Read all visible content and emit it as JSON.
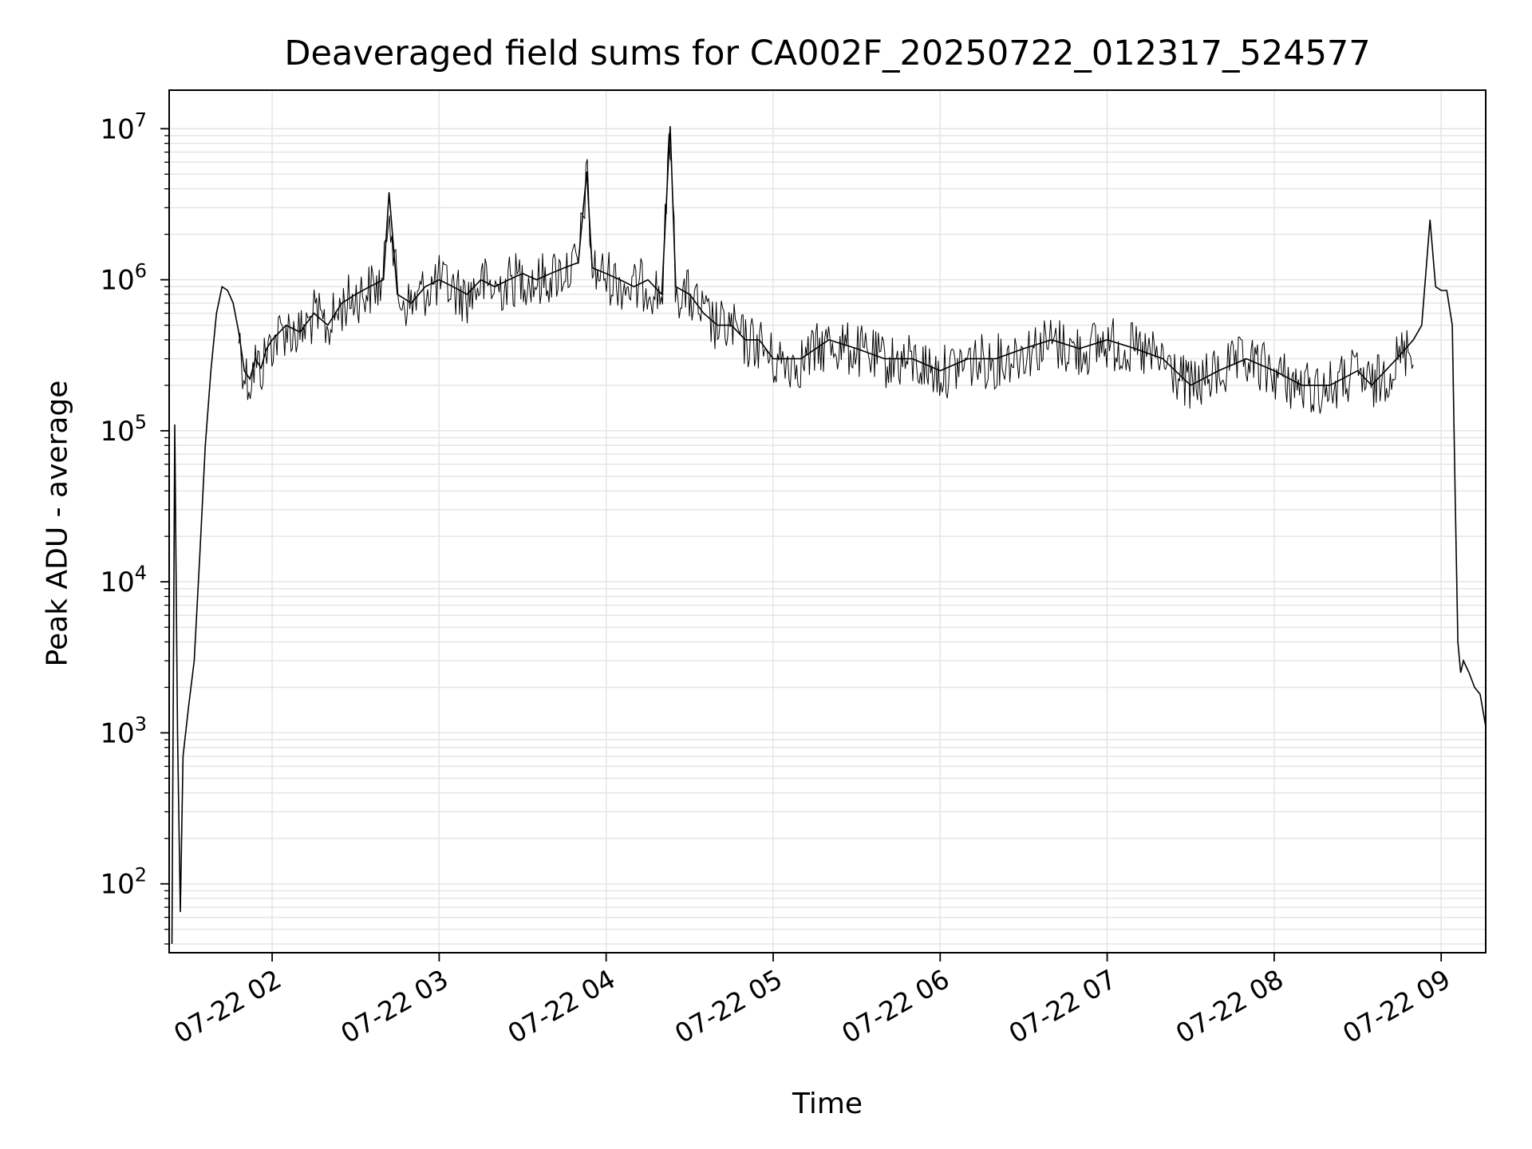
{
  "chart_data": {
    "type": "line",
    "title": "Deaveraged field sums for CA002F_20250722_012317_524577",
    "xlabel": "Time",
    "ylabel": "Peak ADU - average",
    "yscale": "log",
    "ylim": [
      35,
      18000000
    ],
    "xlim": [
      "2025-07-22 01:23",
      "2025-07-22 09:16"
    ],
    "grid": true,
    "line_color": "#000000",
    "grid_color": "#e5e5e5",
    "x_ticks": [
      {
        "x": "2025-07-22 02:00",
        "label": "07-22 02"
      },
      {
        "x": "2025-07-22 03:00",
        "label": "07-22 03"
      },
      {
        "x": "2025-07-22 04:00",
        "label": "07-22 04"
      },
      {
        "x": "2025-07-22 05:00",
        "label": "07-22 05"
      },
      {
        "x": "2025-07-22 06:00",
        "label": "07-22 06"
      },
      {
        "x": "2025-07-22 07:00",
        "label": "07-22 07"
      },
      {
        "x": "2025-07-22 08:00",
        "label": "07-22 08"
      },
      {
        "x": "2025-07-22 09:00",
        "label": "07-22 09"
      }
    ],
    "y_ticks": [
      {
        "y": 100,
        "base": "10",
        "exp": "2"
      },
      {
        "y": 1000,
        "base": "10",
        "exp": "3"
      },
      {
        "y": 10000,
        "base": "10",
        "exp": "4"
      },
      {
        "y": 100000,
        "base": "10",
        "exp": "5"
      },
      {
        "y": 1000000,
        "base": "10",
        "exp": "6"
      },
      {
        "y": 10000000,
        "base": "10",
        "exp": "7"
      }
    ],
    "series": [
      {
        "x": [
          "2025-07-22 01:24",
          "2025-07-22 01:25",
          "2025-07-22 01:26",
          "2025-07-22 01:27",
          "2025-07-22 01:28",
          "2025-07-22 01:30",
          "2025-07-22 01:32",
          "2025-07-22 01:34",
          "2025-07-22 01:36",
          "2025-07-22 01:38",
          "2025-07-22 01:40",
          "2025-07-22 01:42",
          "2025-07-22 01:44",
          "2025-07-22 01:46",
          "2025-07-22 01:48",
          "2025-07-22 01:50",
          "2025-07-22 01:52",
          "2025-07-22 01:54",
          "2025-07-22 01:56",
          "2025-07-22 01:58",
          "2025-07-22 02:00",
          "2025-07-22 02:05",
          "2025-07-22 02:10",
          "2025-07-22 02:15",
          "2025-07-22 02:20",
          "2025-07-22 02:25",
          "2025-07-22 02:30",
          "2025-07-22 02:35",
          "2025-07-22 02:40",
          "2025-07-22 02:42",
          "2025-07-22 02:45",
          "2025-07-22 02:50",
          "2025-07-22 02:55",
          "2025-07-22 03:00",
          "2025-07-22 03:05",
          "2025-07-22 03:10",
          "2025-07-22 03:15",
          "2025-07-22 03:20",
          "2025-07-22 03:25",
          "2025-07-22 03:30",
          "2025-07-22 03:35",
          "2025-07-22 03:40",
          "2025-07-22 03:45",
          "2025-07-22 03:50",
          "2025-07-22 03:53",
          "2025-07-22 03:55",
          "2025-07-22 04:00",
          "2025-07-22 04:05",
          "2025-07-22 04:10",
          "2025-07-22 04:15",
          "2025-07-22 04:20",
          "2025-07-22 04:23",
          "2025-07-22 04:25",
          "2025-07-22 04:30",
          "2025-07-22 04:35",
          "2025-07-22 04:40",
          "2025-07-22 04:45",
          "2025-07-22 04:50",
          "2025-07-22 04:55",
          "2025-07-22 05:00",
          "2025-07-22 05:10",
          "2025-07-22 05:20",
          "2025-07-22 05:30",
          "2025-07-22 05:40",
          "2025-07-22 05:50",
          "2025-07-22 06:00",
          "2025-07-22 06:10",
          "2025-07-22 06:20",
          "2025-07-22 06:30",
          "2025-07-22 06:40",
          "2025-07-22 06:50",
          "2025-07-22 07:00",
          "2025-07-22 07:10",
          "2025-07-22 07:20",
          "2025-07-22 07:30",
          "2025-07-22 07:40",
          "2025-07-22 07:50",
          "2025-07-22 08:00",
          "2025-07-22 08:10",
          "2025-07-22 08:20",
          "2025-07-22 08:30",
          "2025-07-22 08:35",
          "2025-07-22 08:40",
          "2025-07-22 08:44",
          "2025-07-22 08:50",
          "2025-07-22 08:53",
          "2025-07-22 08:56",
          "2025-07-22 08:58",
          "2025-07-22 09:00",
          "2025-07-22 09:02",
          "2025-07-22 09:04",
          "2025-07-22 09:05",
          "2025-07-22 09:06",
          "2025-07-22 09:07",
          "2025-07-22 09:08",
          "2025-07-22 09:10",
          "2025-07-22 09:12",
          "2025-07-22 09:14",
          "2025-07-22 09:16"
        ],
        "y": [
          40,
          110000,
          1000,
          65,
          700,
          1500,
          3000,
          15000,
          80000,
          250000,
          600000,
          900000,
          850000,
          700000,
          450000,
          250000,
          220000,
          300000,
          260000,
          350000,
          400000,
          500000,
          450000,
          600000,
          500000,
          700000,
          800000,
          900000,
          1000000,
          3800000,
          800000,
          700000,
          900000,
          1000000,
          900000,
          800000,
          1000000,
          900000,
          1000000,
          1100000,
          1000000,
          1100000,
          1200000,
          1300000,
          5200000,
          1200000,
          1100000,
          1000000,
          900000,
          1000000,
          800000,
          10400000,
          900000,
          800000,
          600000,
          500000,
          500000,
          400000,
          400000,
          300000,
          300000,
          400000,
          350000,
          300000,
          300000,
          250000,
          300000,
          300000,
          350000,
          400000,
          350000,
          400000,
          350000,
          300000,
          200000,
          250000,
          300000,
          250000,
          200000,
          200000,
          250000,
          200000,
          250000,
          300000,
          400000,
          500000,
          2500000,
          900000,
          850000,
          850000,
          500000,
          40000,
          4000,
          2500,
          3000,
          2500,
          2000,
          1800,
          1100
        ]
      }
    ]
  }
}
